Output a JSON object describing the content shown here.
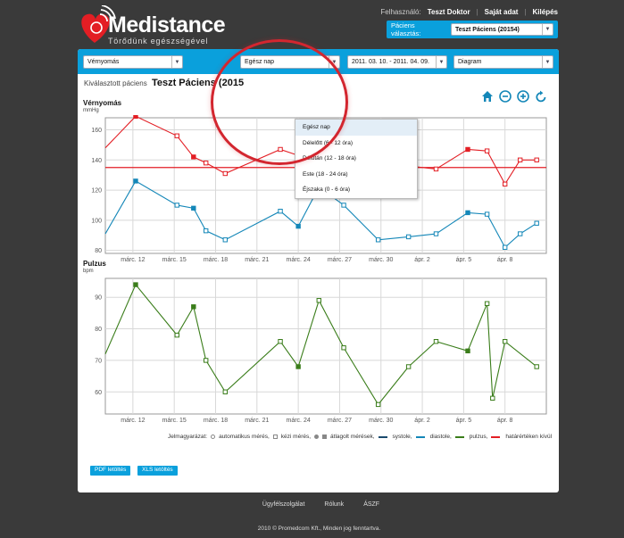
{
  "brand": {
    "name": "Medistance",
    "tagline": "Törődünk egészségével"
  },
  "topnav": {
    "user_label": "Felhasználó:",
    "user_name": "Teszt Doktor",
    "own_data": "Saját adat",
    "logout": "Kilépés"
  },
  "patient_select": {
    "label": "Páciens választás:",
    "value": "Teszt Páciens (20154)"
  },
  "filters": {
    "measure_type": "Vérnyomás",
    "time_of_day": "Egész nap",
    "date_range": "2011. 03. 10. - 2011. 04. 09.",
    "view_mode": "Diagram"
  },
  "selected_patient": {
    "label": "Kiválasztott páciens",
    "name": "Teszt Páciens (2015"
  },
  "dropdown": {
    "options": [
      "Egész nap",
      "Délelőtt (6 - 12 óra)",
      "Délután (12 - 18 óra)",
      "Este (18 - 24 óra)",
      "Éjszaka (0 - 6 óra)"
    ],
    "selected_index": 0
  },
  "icons": [
    "home-icon",
    "zoom-out-icon",
    "zoom-in-icon",
    "reset-icon"
  ],
  "colors": {
    "systole": "#e31e24",
    "diastole": "#1487b8",
    "pulse": "#3a7d1a",
    "limit": "#e31e24",
    "accent": "#0aa0dc"
  },
  "chart_data": [
    {
      "type": "line",
      "title": "Vérnyomás",
      "unit": "mmHg",
      "x_ticks": [
        "márc. 12",
        "márc. 15",
        "márc. 18",
        "márc. 21",
        "márc. 24",
        "márc. 27",
        "márc. 30",
        "ápr. 2",
        "ápr. 5",
        "ápr. 8"
      ],
      "ylim": [
        78,
        168
      ],
      "y_ticks": [
        80,
        100,
        120,
        140,
        160
      ],
      "limit_line": 135,
      "series": [
        {
          "name": "systole",
          "points": [
            [
              10,
              148
            ],
            [
              12.2,
              169
            ],
            [
              15.2,
              156
            ],
            [
              16.4,
              142
            ],
            [
              17.3,
              138
            ],
            [
              18.7,
              131
            ],
            [
              22.7,
              147
            ],
            [
              24.0,
              143
            ],
            [
              27.3,
              143
            ],
            [
              30.0,
              128
            ],
            [
              32.0,
              136
            ],
            [
              34.0,
              134
            ],
            [
              36.3,
              147
            ],
            [
              37.7,
              146
            ],
            [
              39.0,
              124
            ],
            [
              40.1,
              140
            ],
            [
              41.3,
              140
            ]
          ],
          "markers": [
            "none",
            "filled",
            "open",
            "filled",
            "open",
            "open",
            "open",
            "filled",
            "open",
            "open",
            "open",
            "open",
            "filled",
            "open",
            "open",
            "open",
            "open"
          ]
        },
        {
          "name": "diastole",
          "points": [
            [
              10,
              91
            ],
            [
              12.2,
              126
            ],
            [
              15.2,
              110
            ],
            [
              16.4,
              108
            ],
            [
              17.3,
              93
            ],
            [
              18.7,
              87
            ],
            [
              22.7,
              106
            ],
            [
              24.0,
              96
            ],
            [
              25.5,
              122
            ],
            [
              27.3,
              110
            ],
            [
              29.8,
              87
            ],
            [
              32.0,
              89
            ],
            [
              34.0,
              91
            ],
            [
              36.3,
              105
            ],
            [
              37.7,
              104
            ],
            [
              39.0,
              82
            ],
            [
              40.1,
              91
            ],
            [
              41.3,
              98
            ]
          ],
          "markers": [
            "none",
            "filled",
            "open",
            "filled",
            "open",
            "open",
            "open",
            "filled",
            "open",
            "open",
            "open",
            "open",
            "open",
            "filled",
            "open",
            "open",
            "open",
            "open"
          ]
        }
      ]
    },
    {
      "type": "line",
      "title": "Pulzus",
      "unit": "bpm",
      "x_ticks": [
        "márc. 12",
        "márc. 15",
        "márc. 18",
        "márc. 21",
        "márc. 24",
        "márc. 27",
        "márc. 30",
        "ápr. 2",
        "ápr. 5",
        "ápr. 8"
      ],
      "ylim": [
        53,
        96
      ],
      "y_ticks": [
        60,
        70,
        80,
        90
      ],
      "series": [
        {
          "name": "pulzus",
          "points": [
            [
              10,
              72
            ],
            [
              12.2,
              94
            ],
            [
              15.2,
              78
            ],
            [
              16.4,
              87
            ],
            [
              17.3,
              70
            ],
            [
              18.7,
              60
            ],
            [
              22.7,
              76
            ],
            [
              24.0,
              68
            ],
            [
              25.5,
              89
            ],
            [
              27.3,
              74
            ],
            [
              29.8,
              56
            ],
            [
              32.0,
              68
            ],
            [
              34.0,
              76
            ],
            [
              36.3,
              73
            ],
            [
              37.7,
              88
            ],
            [
              38.1,
              58
            ],
            [
              39.0,
              76
            ],
            [
              41.3,
              68
            ]
          ],
          "markers": [
            "none",
            "filled",
            "open",
            "filled",
            "open",
            "open",
            "open",
            "filled",
            "open",
            "open",
            "open",
            "open",
            "open",
            "filled",
            "open",
            "open",
            "open",
            "open"
          ]
        }
      ]
    }
  ],
  "legend": {
    "title": "Jelmagyarázat:",
    "auto": "automatikus mérés,",
    "manual": "kézi mérés,",
    "avg": "átlagolt mérések,",
    "systole": "systole,",
    "diastole": "diastole,",
    "pulse": "pulzus,",
    "limit": "határértéken kívül"
  },
  "buttons": {
    "pdf": "PDF letöltés",
    "xls": "XLS letöltés"
  },
  "footer": {
    "links": [
      "Ügyfélszolgálat",
      "Rólunk",
      "ÁSZF"
    ],
    "copyright": "2010 © Promedcom Kft., Minden jog fenntartva."
  }
}
